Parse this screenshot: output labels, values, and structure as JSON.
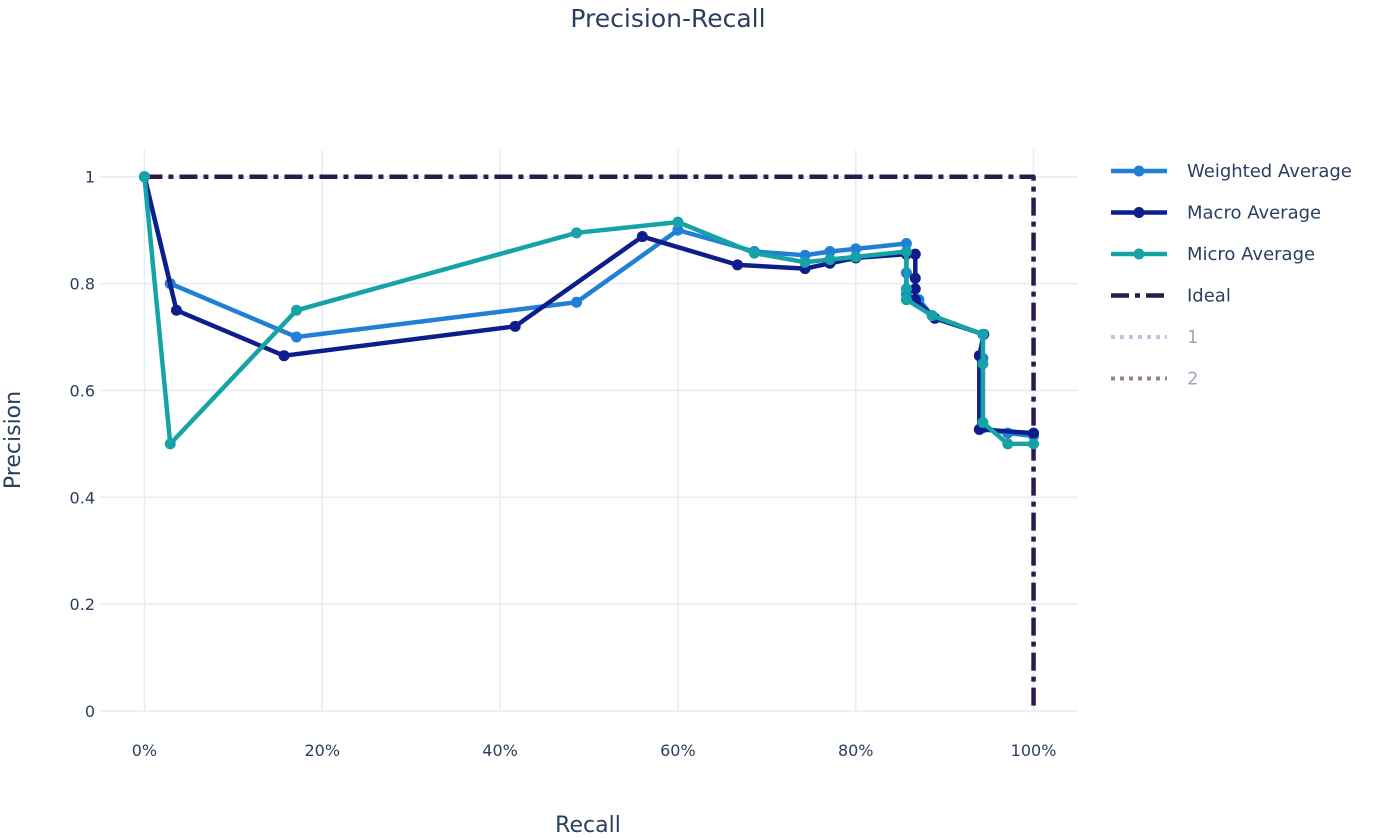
{
  "chart_data": {
    "type": "line",
    "title": "Precision-Recall",
    "xlabel": "Recall",
    "ylabel": "Precision",
    "xlim": [
      -0.05,
      1.05
    ],
    "ylim": [
      0,
      1.05
    ],
    "x_ticks": [
      0,
      0.2,
      0.4,
      0.6,
      0.8,
      1.0
    ],
    "x_tick_labels": [
      "0%",
      "20%",
      "40%",
      "60%",
      "80%",
      "100%"
    ],
    "y_ticks": [
      0,
      0.2,
      0.4,
      0.6,
      0.8,
      1.0
    ],
    "y_tick_labels": [
      "0",
      "0.2",
      "0.4",
      "0.6",
      "0.8",
      "1"
    ],
    "grid": true,
    "legend_position": "right",
    "series": [
      {
        "name": "Weighted Average",
        "color": "#1f80d6",
        "line_style": "solid",
        "markers": true,
        "x": [
          0.0,
          0.029,
          0.171,
          0.486,
          0.6,
          0.686,
          0.743,
          0.771,
          0.8,
          0.857,
          0.857,
          0.857,
          0.871,
          0.886,
          0.943,
          0.943,
          0.943,
          0.971,
          1.0
        ],
        "y": [
          1.0,
          0.8,
          0.7,
          0.765,
          0.9,
          0.86,
          0.853,
          0.86,
          0.865,
          0.875,
          0.82,
          0.78,
          0.77,
          0.74,
          0.705,
          0.66,
          0.53,
          0.52,
          0.515
        ]
      },
      {
        "name": "Macro Average",
        "color": "#0d1e8c",
        "line_style": "solid",
        "markers": true,
        "x": [
          0.0,
          0.036,
          0.157,
          0.417,
          0.56,
          0.667,
          0.743,
          0.771,
          0.8,
          0.857,
          0.867,
          0.867,
          0.867,
          0.867,
          0.889,
          0.944,
          0.939,
          0.939,
          1.0
        ],
        "y": [
          1.0,
          0.75,
          0.665,
          0.72,
          0.888,
          0.835,
          0.828,
          0.838,
          0.848,
          0.855,
          0.855,
          0.81,
          0.79,
          0.77,
          0.735,
          0.705,
          0.665,
          0.527,
          0.52
        ]
      },
      {
        "name": "Micro Average",
        "color": "#16a3a8",
        "line_style": "solid",
        "markers": true,
        "x": [
          0.0,
          0.029,
          0.171,
          0.486,
          0.6,
          0.686,
          0.743,
          0.771,
          0.8,
          0.857,
          0.857,
          0.857,
          0.857,
          0.886,
          0.943,
          0.943,
          0.943,
          0.971,
          1.0
        ],
        "y": [
          1.0,
          0.5,
          0.75,
          0.895,
          0.915,
          0.857,
          0.84,
          0.845,
          0.85,
          0.86,
          0.79,
          0.77,
          0.77,
          0.74,
          0.705,
          0.65,
          0.54,
          0.5,
          0.5
        ]
      },
      {
        "name": "Ideal",
        "color": "#2b1a4a",
        "line_style": "dashdot",
        "markers": false,
        "x": [
          0.0,
          1.0,
          1.0
        ],
        "y": [
          1.0,
          1.0,
          0.0
        ]
      },
      {
        "name": "1",
        "color": "#c5bfe6",
        "line_style": "dot",
        "markers": false,
        "x": [],
        "y": []
      },
      {
        "name": "2",
        "color": "#9a7d94",
        "line_style": "dot",
        "markers": false,
        "x": [],
        "y": []
      }
    ]
  }
}
